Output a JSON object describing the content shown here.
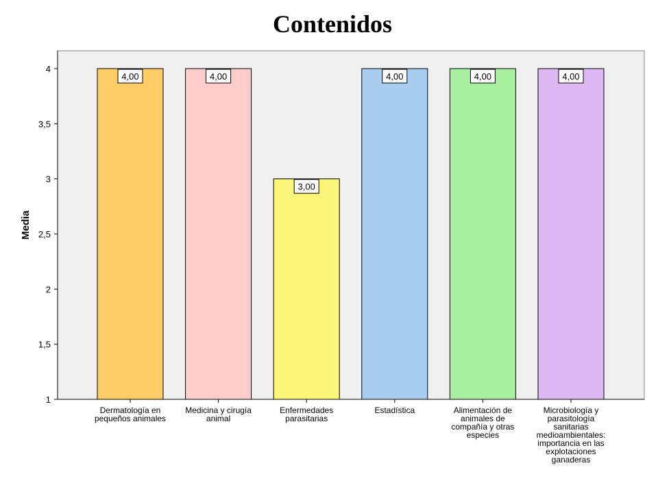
{
  "title": "Contenidos",
  "chart_data": {
    "type": "bar",
    "title": "Contenidos",
    "xlabel": "",
    "ylabel": "Media",
    "ylim": [
      1,
      4
    ],
    "yticks": [
      1,
      1.5,
      2,
      2.5,
      3,
      3.5,
      4
    ],
    "ytick_labels": [
      "1",
      "1,5",
      "2",
      "2,5",
      "3",
      "3,5",
      "4"
    ],
    "grid": false,
    "categories": [
      "Dermatología en pequeños animales",
      "Medicina y cirugía animal",
      "Enfermedades parasitarias",
      "Estadística",
      "Alimentación de animales de compañía y otras especies",
      "Microbiología y parasitología sanitarias medioambientales: importancia en las explotaciones ganaderas"
    ],
    "category_label_lines": [
      [
        "Dermatología en",
        "pequeños animales"
      ],
      [
        "Medicina y cirugía",
        "animal"
      ],
      [
        "Enfermedades",
        "parasitarias"
      ],
      [
        "Estadística"
      ],
      [
        "Alimentación de",
        "animales de",
        "compañía y otras",
        "especies"
      ],
      [
        "Microbiología y",
        "parasitología",
        "sanitarias",
        "medioambientales:",
        "importancia en las",
        "explotaciones",
        "ganaderas"
      ]
    ],
    "values": [
      4,
      4,
      3,
      4,
      4,
      4
    ],
    "value_labels": [
      "4,00",
      "4,00",
      "3,00",
      "4,00",
      "4,00",
      "4,00"
    ],
    "colors": [
      "#ffcc66",
      "#ffcccc",
      "#fbf579",
      "#a9cdee",
      "#a8f0a0",
      "#ddb8f2"
    ],
    "background": "#f0f0f0"
  }
}
